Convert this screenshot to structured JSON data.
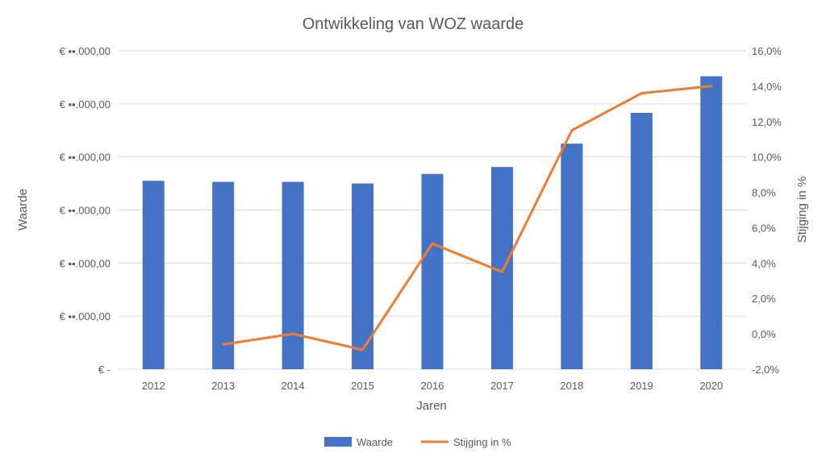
{
  "chart_data": {
    "type": "bar+line",
    "title": "Ontwikkeling van WOZ waarde",
    "xlabel": "Jaren",
    "ylabel": "Waarde",
    "y2label": "Stijging in %",
    "categories": [
      "2012",
      "2013",
      "2014",
      "2015",
      "2016",
      "2017",
      "2018",
      "2019",
      "2020"
    ],
    "series": [
      {
        "name": "Waarde",
        "type": "bar",
        "axis": "left",
        "color": "#4472C4",
        "values": [
          3.55,
          3.53,
          3.53,
          3.5,
          3.68,
          3.81,
          4.25,
          4.83,
          5.52
        ]
      },
      {
        "name": "Stijging in %",
        "type": "line",
        "axis": "right",
        "color": "#ED7D31",
        "values": [
          null,
          -0.6,
          0.0,
          -0.9,
          5.1,
          3.5,
          11.5,
          13.6,
          14.0
        ]
      }
    ],
    "y_axis_left": {
      "range": [
        0,
        6
      ],
      "tick_values": [
        0,
        1,
        2,
        3,
        4,
        5,
        6
      ],
      "tick_labels": [
        "€ -",
        "€ ▪▪.000,00",
        "€ ▪▪.000,00",
        "€ ▪▪.000,00",
        "€ ▪▪.000,00",
        "€ ▪▪.000,00",
        "€ ▪▪.000,00"
      ],
      "note": "values in thousands are pixelated/obscured in original"
    },
    "y_axis_right": {
      "range": [
        -2,
        16
      ],
      "tick_values": [
        -2,
        0,
        2,
        4,
        6,
        8,
        10,
        12,
        14,
        16
      ],
      "tick_labels": [
        "-2,0%",
        "0,0%",
        "2,0%",
        "4,0%",
        "6,0%",
        "8,0%",
        "10,0%",
        "12,0%",
        "14,0%",
        "16,0%"
      ]
    },
    "grid": true,
    "legend_position": "bottom"
  }
}
